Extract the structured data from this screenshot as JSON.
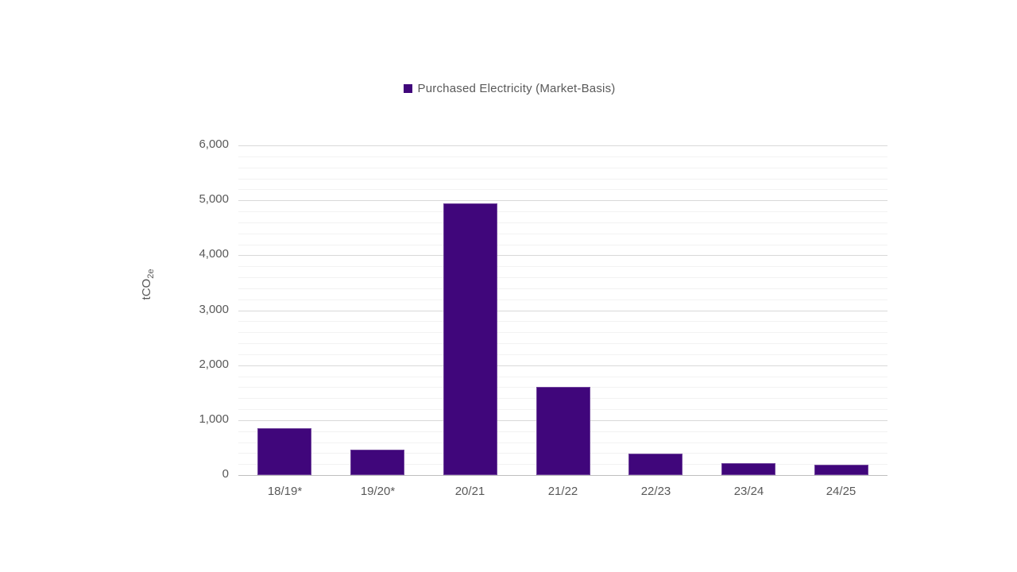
{
  "legend": {
    "label": "Purchased Electricity (Market-Basis)",
    "swatch_color": "#40067B"
  },
  "y_axis": {
    "title_main": "tCO",
    "title_sub": "2e",
    "tick_labels": [
      "0",
      "1,000",
      "2,000",
      "3,000",
      "4,000",
      "5,000",
      "6,000"
    ]
  },
  "colors": {
    "bar": "#40067B",
    "text": "#595959",
    "gridline_major": "#d9d9d9",
    "gridline_minor": "#f2f2f2",
    "axis_line": "#bfbfbf"
  },
  "chart_data": {
    "type": "bar",
    "title": "",
    "categories": [
      "18/19*",
      "19/20*",
      "20/21",
      "21/22",
      "22/23",
      "23/24",
      "24/25"
    ],
    "series": [
      {
        "name": "Purchased Electricity (Market-Basis)",
        "color": "#40067B",
        "values": [
          860,
          460,
          4950,
          1600,
          390,
          220,
          190
        ]
      }
    ],
    "xlabel": "",
    "ylabel": "tCO2e",
    "ylim": [
      0,
      6000
    ],
    "y_major_unit": 1000,
    "y_minor_unit": 200,
    "grid": "on",
    "legend_position": "top"
  }
}
